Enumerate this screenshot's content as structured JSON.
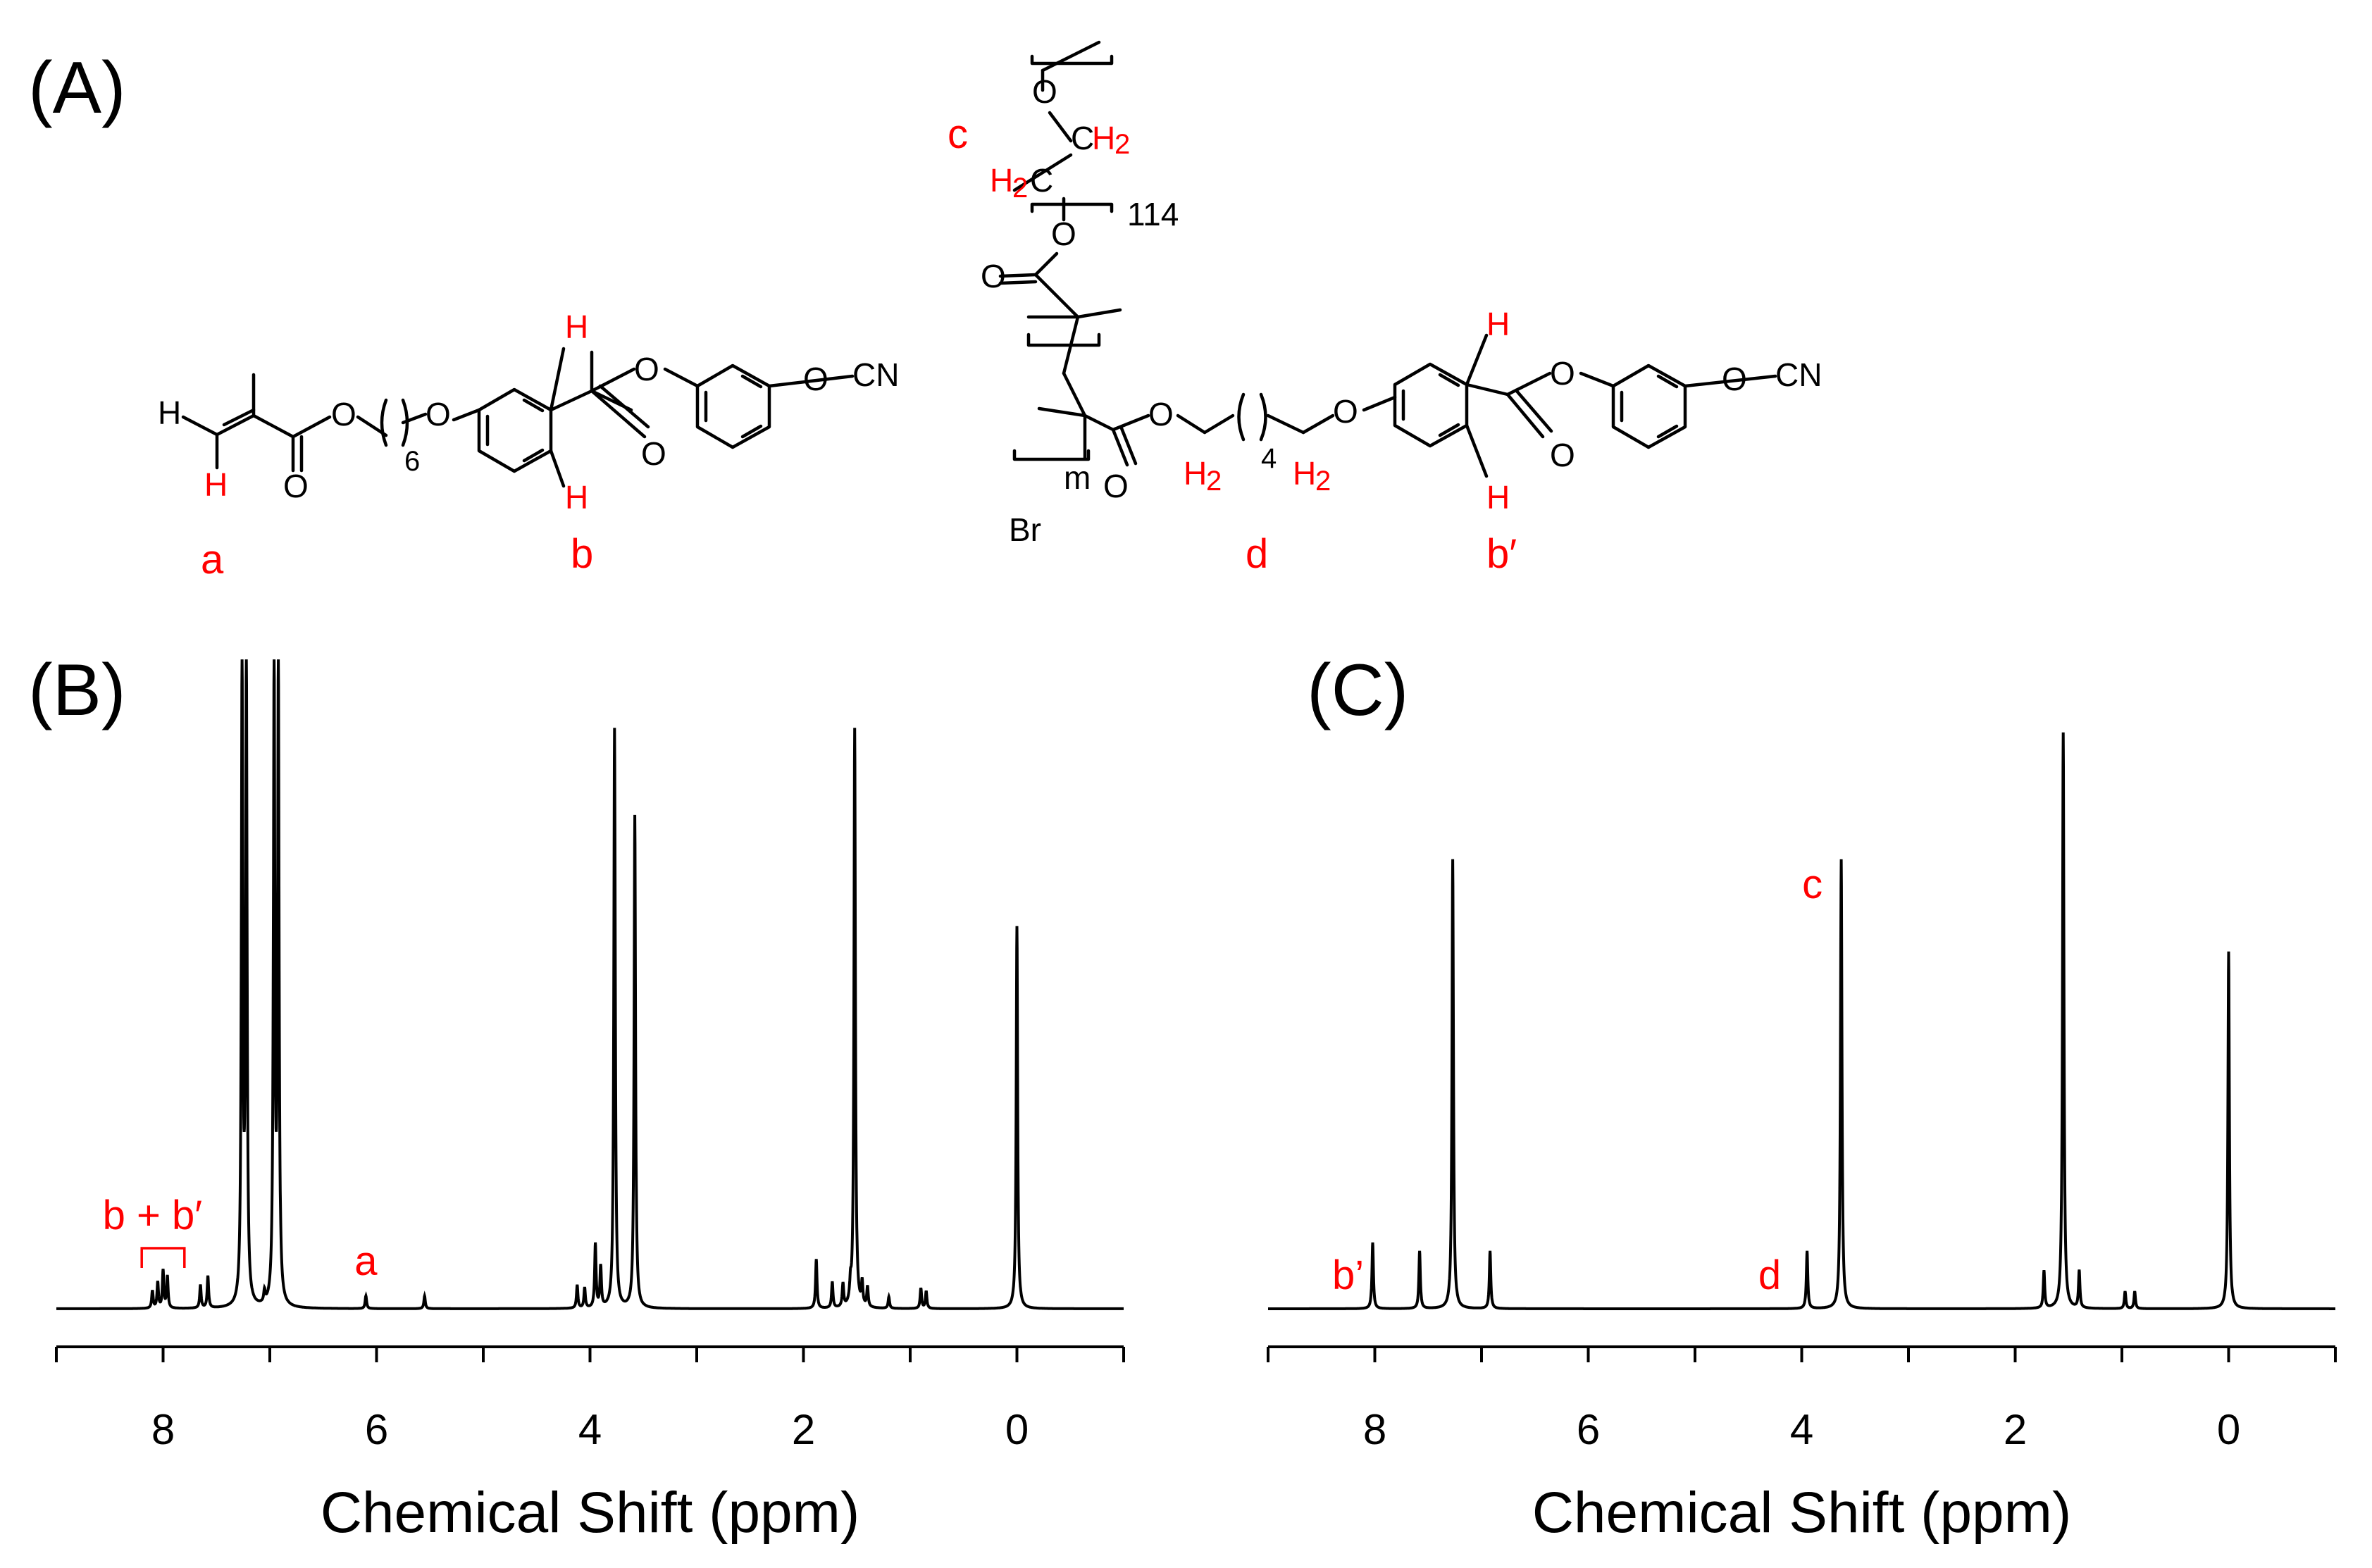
{
  "panels": {
    "a": "(A)",
    "b": "(B)",
    "c": "(C)"
  },
  "structures": {
    "monomer": {
      "atoms": [
        "H",
        "H",
        "O",
        "O",
        "6",
        "O",
        "H",
        "H",
        "O",
        "O",
        "O",
        "CN"
      ],
      "labels": [
        "a",
        "b"
      ]
    },
    "polymer": {
      "atoms": [
        "O",
        "C",
        "H",
        "2",
        "H",
        "2",
        "C",
        "O",
        "O",
        "Br",
        "m",
        "O",
        "O",
        "H",
        "2",
        "4",
        "H",
        "2",
        "O",
        "H",
        "H",
        "O",
        "O",
        "O",
        "CN"
      ],
      "repeat_114": "114",
      "labels": [
        "c",
        "d",
        "b′"
      ]
    }
  },
  "colors": {
    "assignment": "#ff0000",
    "spectrum": "#000000"
  },
  "chart_data": [
    {
      "type": "line",
      "panel": "(B)",
      "xlabel": "Chemical Shift (ppm)",
      "x_axis_reversed": true,
      "xlim": [
        9.0,
        -1.0
      ],
      "ticks": [
        8,
        6,
        4,
        2,
        0
      ],
      "minor_ticks": [
        9,
        7,
        5,
        3,
        1,
        -1
      ],
      "peaks": [
        {
          "x": 8.1,
          "height": 0.03
        },
        {
          "x": 8.05,
          "height": 0.045
        },
        {
          "x": 8.0,
          "height": 0.065
        },
        {
          "x": 7.96,
          "height": 0.055
        },
        {
          "x": 7.65,
          "height": 0.04
        },
        {
          "x": 7.58,
          "height": 0.055
        },
        {
          "x": 7.26,
          "height": 1.1
        },
        {
          "x": 7.22,
          "height": 1.1
        },
        {
          "x": 7.05,
          "height": 0.02
        },
        {
          "x": 6.96,
          "height": 1.1
        },
        {
          "x": 6.92,
          "height": 1.1
        },
        {
          "x": 6.1,
          "height": 0.022
        },
        {
          "x": 5.55,
          "height": 0.022
        },
        {
          "x": 4.12,
          "height": 0.04
        },
        {
          "x": 4.05,
          "height": 0.035
        },
        {
          "x": 3.95,
          "height": 0.11
        },
        {
          "x": 3.9,
          "height": 0.07
        },
        {
          "x": 3.77,
          "height": 1.0
        },
        {
          "x": 3.58,
          "height": 0.85
        },
        {
          "x": 1.88,
          "height": 0.085
        },
        {
          "x": 1.73,
          "height": 0.045
        },
        {
          "x": 1.63,
          "height": 0.04
        },
        {
          "x": 1.56,
          "height": 0.03
        },
        {
          "x": 1.52,
          "height": 1.0
        },
        {
          "x": 1.45,
          "height": 0.04
        },
        {
          "x": 1.4,
          "height": 0.035
        },
        {
          "x": 1.2,
          "height": 0.02
        },
        {
          "x": 0.9,
          "height": 0.035
        },
        {
          "x": 0.85,
          "height": 0.03
        },
        {
          "x": 0.0,
          "height": 0.66
        }
      ],
      "annotations": [
        {
          "text": "b + b′",
          "x": 8.1
        },
        {
          "text": "a",
          "x": 6.1
        }
      ]
    },
    {
      "type": "line",
      "panel": "(C)",
      "xlabel": "Chemical Shift (ppm)",
      "x_axis_reversed": true,
      "xlim": [
        9.0,
        -1.0
      ],
      "ticks": [
        8,
        6,
        4,
        2,
        0
      ],
      "minor_ticks": [
        9,
        7,
        5,
        3,
        1,
        -1
      ],
      "peaks": [
        {
          "x": 8.02,
          "height": 0.115
        },
        {
          "x": 7.58,
          "height": 0.1
        },
        {
          "x": 7.27,
          "height": 0.78
        },
        {
          "x": 6.92,
          "height": 0.1
        },
        {
          "x": 3.95,
          "height": 0.1
        },
        {
          "x": 3.63,
          "height": 0.78
        },
        {
          "x": 1.73,
          "height": 0.065
        },
        {
          "x": 1.55,
          "height": 1.0
        },
        {
          "x": 1.4,
          "height": 0.065
        },
        {
          "x": 0.97,
          "height": 0.03
        },
        {
          "x": 0.88,
          "height": 0.03
        },
        {
          "x": 0.0,
          "height": 0.62
        }
      ],
      "annotations": [
        {
          "text": "b’",
          "x": 8.25
        },
        {
          "text": "d",
          "x": 4.3
        },
        {
          "text": "c",
          "x": 3.9
        }
      ]
    }
  ]
}
